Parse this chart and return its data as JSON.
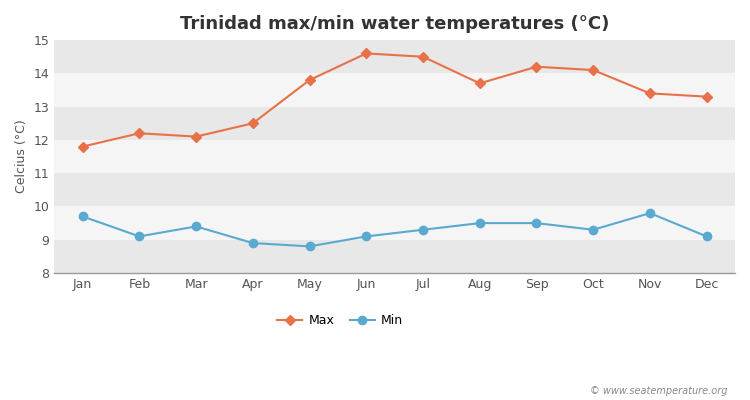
{
  "title": "Trinidad max/min water temperatures (°C)",
  "ylabel": "Celcius (°C)",
  "months": [
    "Jan",
    "Feb",
    "Mar",
    "Apr",
    "May",
    "Jun",
    "Jul",
    "Aug",
    "Sep",
    "Oct",
    "Nov",
    "Dec"
  ],
  "max_temps": [
    11.8,
    12.2,
    12.1,
    12.5,
    13.8,
    14.6,
    14.5,
    13.7,
    14.2,
    14.1,
    13.4,
    13.3
  ],
  "min_temps": [
    9.7,
    9.1,
    9.4,
    8.9,
    8.8,
    9.1,
    9.3,
    9.5,
    9.5,
    9.3,
    9.8,
    9.1
  ],
  "ylim": [
    8,
    15
  ],
  "yticks": [
    8,
    9,
    10,
    11,
    12,
    13,
    14,
    15
  ],
  "max_color": "#e8714a",
  "min_color": "#5aaacf",
  "fig_bg_color": "#ffffff",
  "band_colors": [
    "#e8e8e8",
    "#f5f5f5"
  ],
  "watermark": "© www.seatemperature.org",
  "legend_labels": [
    "Max",
    "Min"
  ],
  "marker_max": "D",
  "marker_min": "o",
  "markersize_max": 5,
  "markersize_min": 6,
  "linewidth": 1.5,
  "title_fontsize": 13,
  "axis_fontsize": 9,
  "tick_fontsize": 9
}
